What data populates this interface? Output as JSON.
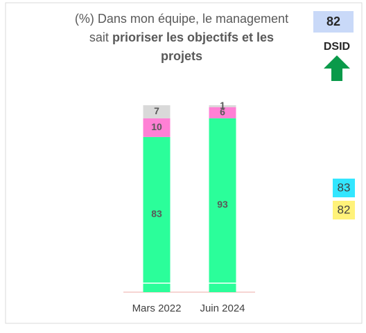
{
  "chart_data": {
    "type": "stacked_bar",
    "title_normal": "(%) Dans mon équipe, le management sait",
    "title_bold": "prioriser les objectifs et les projets",
    "categories": [
      "Mars 2022",
      "Juin 2024"
    ],
    "series": [
      {
        "color": "#2bfe9a",
        "values": [
          83,
          93
        ]
      },
      {
        "color": "#ff80d5",
        "values": [
          10,
          6
        ]
      },
      {
        "color": "#d9d9d9",
        "values": [
          7,
          1
        ]
      }
    ],
    "ylim": [
      0,
      100
    ],
    "score": {
      "value": 82,
      "label": "DSID",
      "color": "#c9d9f8"
    },
    "side_values": [
      {
        "value": 83,
        "color": "#33e6ff"
      },
      {
        "value": 82,
        "color": "#fff27a"
      }
    ]
  }
}
